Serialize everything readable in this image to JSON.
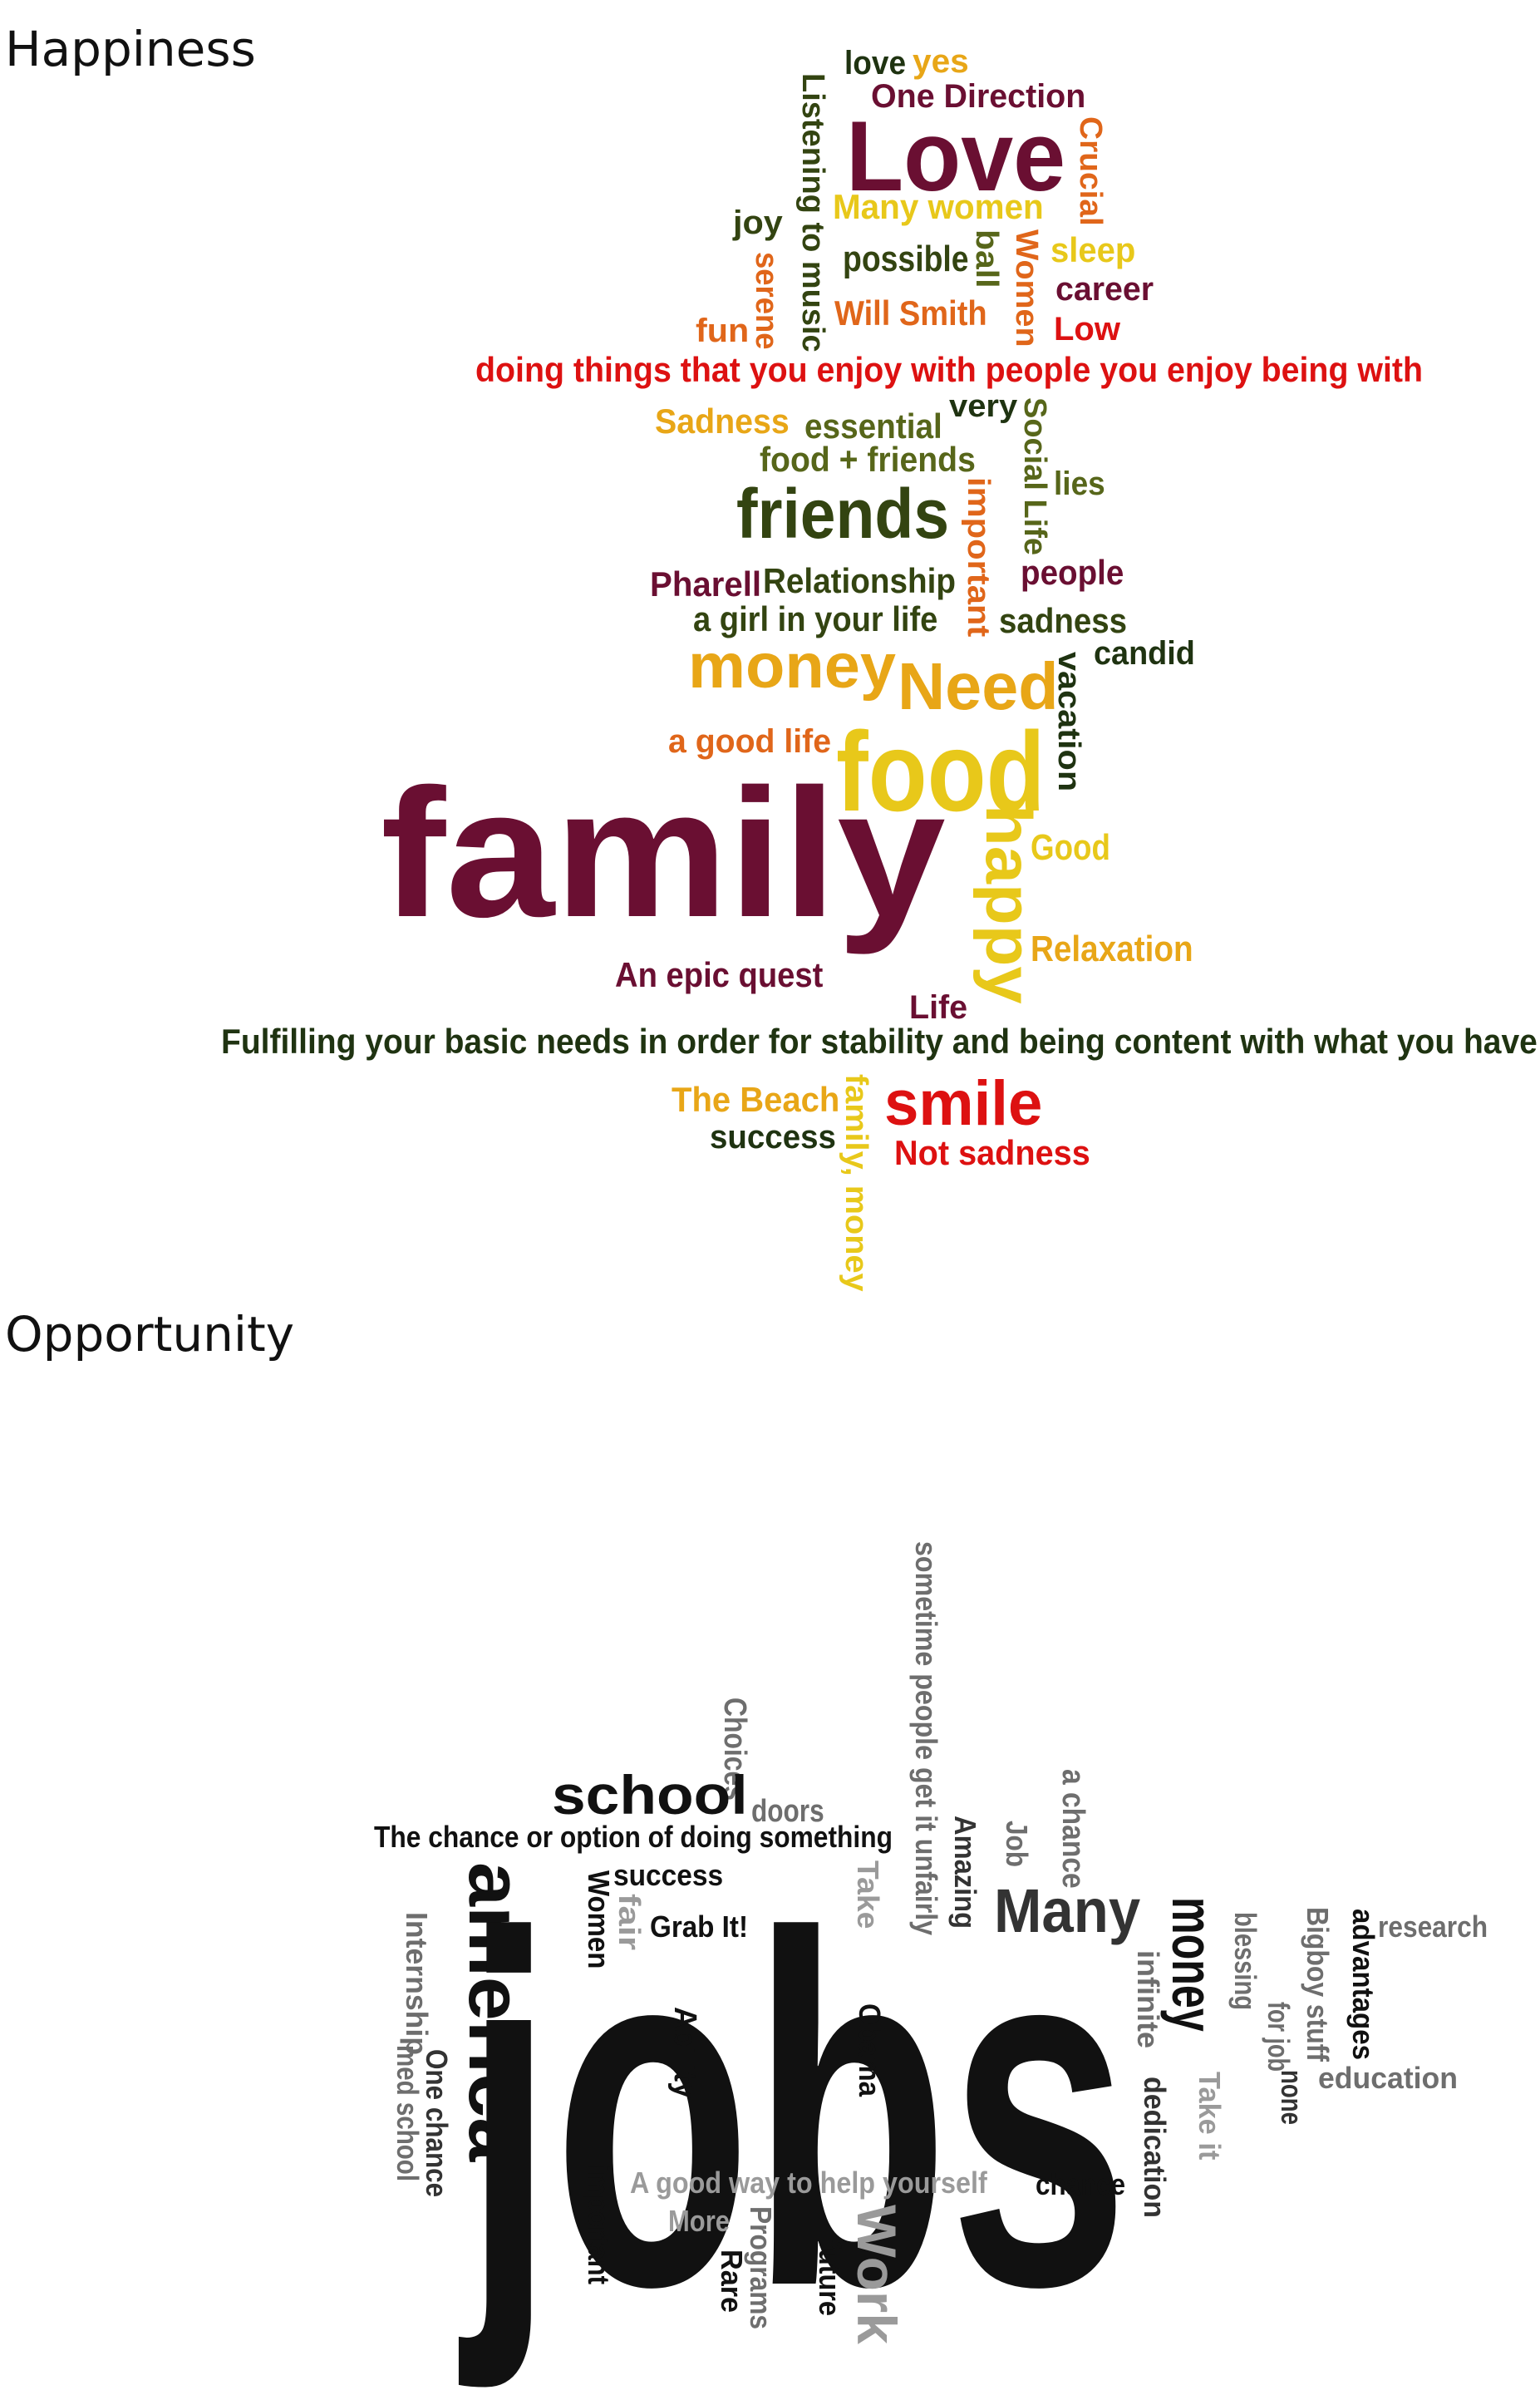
{
  "happiness": {
    "heading": "Happiness",
    "palette": {
      "maroon": "#6a0f32",
      "dark_olive": "#334411",
      "olive": "#57661a",
      "dark_green": "#1f3311",
      "orange": "#e0661a",
      "gold": "#e8a617",
      "yellow": "#e8c81a",
      "red": "#dd1111"
    },
    "words": [
      {
        "text": "love",
        "color": "#1f3311"
      },
      {
        "text": "yes",
        "color": "#e8a617"
      },
      {
        "text": "One Direction",
        "color": "#6a0f32"
      },
      {
        "text": "Listening to music",
        "color": "#334411"
      },
      {
        "text": "Love",
        "color": "#6a0f32"
      },
      {
        "text": "Crucial",
        "color": "#e0661a"
      },
      {
        "text": "Many women",
        "color": "#e8c81a"
      },
      {
        "text": "joy",
        "color": "#334411"
      },
      {
        "text": "ball",
        "color": "#57661a"
      },
      {
        "text": "Women",
        "color": "#e0661a"
      },
      {
        "text": "sleep",
        "color": "#e8c81a"
      },
      {
        "text": "possible",
        "color": "#334411"
      },
      {
        "text": "serene",
        "color": "#e0661a"
      },
      {
        "text": "career",
        "color": "#6a0f32"
      },
      {
        "text": "Will Smith",
        "color": "#e0661a"
      },
      {
        "text": "fun",
        "color": "#e0661a"
      },
      {
        "text": "Low",
        "color": "#dd1111"
      },
      {
        "text": "doing things that you enjoy with people you enjoy being with",
        "color": "#dd1111"
      },
      {
        "text": "very",
        "color": "#1f3311"
      },
      {
        "text": "Sadness",
        "color": "#e8a617"
      },
      {
        "text": "essential",
        "color": "#57661a"
      },
      {
        "text": "Social Life",
        "color": "#57661a"
      },
      {
        "text": "food + friends",
        "color": "#57661a"
      },
      {
        "text": "lies",
        "color": "#57661a"
      },
      {
        "text": "friends",
        "color": "#334411"
      },
      {
        "text": "important",
        "color": "#e0661a"
      },
      {
        "text": "Pharell",
        "color": "#6a0f32"
      },
      {
        "text": "Relationship",
        "color": "#334411"
      },
      {
        "text": "people",
        "color": "#6a0f32"
      },
      {
        "text": "a girl in your life",
        "color": "#334411"
      },
      {
        "text": "sadness",
        "color": "#334411"
      },
      {
        "text": "candid",
        "color": "#1f3311"
      },
      {
        "text": "money",
        "color": "#e8a617"
      },
      {
        "text": "Need",
        "color": "#e8a617"
      },
      {
        "text": "vacation",
        "color": "#1f3311"
      },
      {
        "text": "a good life",
        "color": "#e0661a"
      },
      {
        "text": "food",
        "color": "#e8c81a"
      },
      {
        "text": "family",
        "color": "#6a0f32"
      },
      {
        "text": "happy",
        "color": "#e8c81a"
      },
      {
        "text": "Good",
        "color": "#e8c81a"
      },
      {
        "text": "Relaxation",
        "color": "#e8a617"
      },
      {
        "text": "An epic quest",
        "color": "#6a0f32"
      },
      {
        "text": "Life",
        "color": "#6a0f32"
      },
      {
        "text": "Fulfilling your basic needs in order for stability and being content with what you have",
        "color": "#1f3311"
      },
      {
        "text": "The Beach",
        "color": "#e8a617"
      },
      {
        "text": "family, money",
        "color": "#e8c81a"
      },
      {
        "text": "smile",
        "color": "#dd1111"
      },
      {
        "text": "success",
        "color": "#1f3311"
      },
      {
        "text": "Not sadness",
        "color": "#dd1111"
      }
    ]
  },
  "opportunity": {
    "heading": "Opportunity",
    "palette": {
      "black": "#111111",
      "dark_gray": "#333333",
      "mid_gray": "#6e6e6e",
      "light_gray": "#9a9a9a"
    },
    "words": [
      {
        "text": "sometime people get it unfairly",
        "color": "#6e6e6e"
      },
      {
        "text": "Choices",
        "color": "#6e6e6e"
      },
      {
        "text": "school",
        "color": "#111111"
      },
      {
        "text": "doors",
        "color": "#6e6e6e"
      },
      {
        "text": "a chance",
        "color": "#6e6e6e"
      },
      {
        "text": "The chance or option of doing something",
        "color": "#111111"
      },
      {
        "text": "Amazing",
        "color": "#333333"
      },
      {
        "text": "Job",
        "color": "#6e6e6e"
      },
      {
        "text": "success",
        "color": "#111111"
      },
      {
        "text": "Take",
        "color": "#9a9a9a"
      },
      {
        "text": "Many",
        "color": "#333333"
      },
      {
        "text": "america",
        "color": "#111111"
      },
      {
        "text": "Women",
        "color": "#111111"
      },
      {
        "text": "fair",
        "color": "#9a9a9a"
      },
      {
        "text": "Grab It!",
        "color": "#111111"
      },
      {
        "text": "research",
        "color": "#6e6e6e"
      },
      {
        "text": "money",
        "color": "#111111"
      },
      {
        "text": "blessing",
        "color": "#6e6e6e"
      },
      {
        "text": "Bigboy stuff",
        "color": "#6e6e6e"
      },
      {
        "text": "advantages",
        "color": "#111111"
      },
      {
        "text": "Internship",
        "color": "#6e6e6e"
      },
      {
        "text": "jobs",
        "color": "#111111"
      },
      {
        "text": "infinite",
        "color": "#6e6e6e"
      },
      {
        "text": "for job",
        "color": "#6e6e6e"
      },
      {
        "text": "Ability",
        "color": "#111111"
      },
      {
        "text": "Obama",
        "color": "#111111"
      },
      {
        "text": "med school",
        "color": "#6e6e6e"
      },
      {
        "text": "One chance",
        "color": "#333333"
      },
      {
        "text": "education",
        "color": "#6e6e6e"
      },
      {
        "text": "none",
        "color": "#333333"
      },
      {
        "text": "Take it",
        "color": "#9a9a9a"
      },
      {
        "text": "dedication",
        "color": "#333333"
      },
      {
        "text": "A good way to help yourself",
        "color": "#9a9a9a"
      },
      {
        "text": "chance",
        "color": "#111111"
      },
      {
        "text": "important",
        "color": "#111111"
      },
      {
        "text": "More",
        "color": "#9a9a9a"
      },
      {
        "text": "Rare",
        "color": "#111111"
      },
      {
        "text": "Programs",
        "color": "#6e6e6e"
      },
      {
        "text": "future",
        "color": "#111111"
      },
      {
        "text": "Work",
        "color": "#9a9a9a"
      }
    ]
  }
}
